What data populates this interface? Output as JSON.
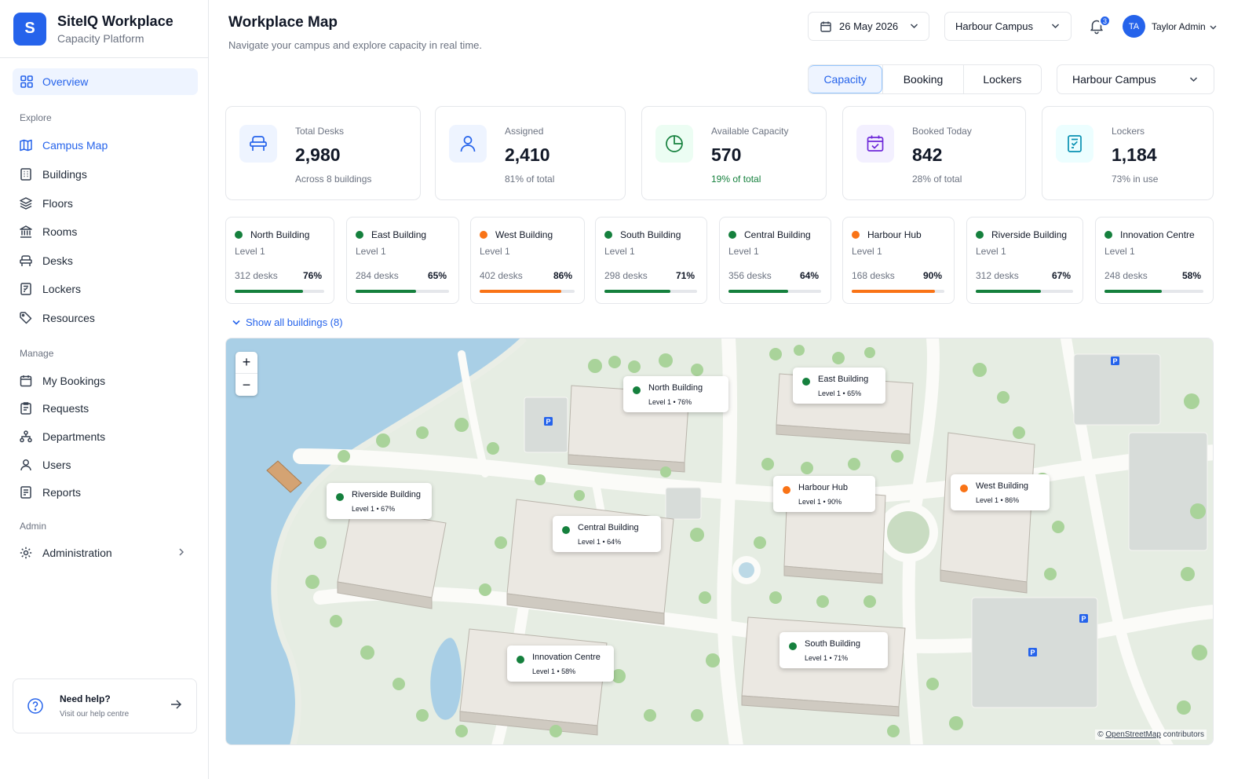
{
  "brand": {
    "logo_letter": "S",
    "name": "SiteIQ Workplace",
    "subtitle": "Capacity Platform"
  },
  "nav": {
    "overview": "Overview",
    "sections": {
      "explore": "Explore",
      "manage": "Manage",
      "admin": "Admin"
    },
    "explore": [
      "Campus Map",
      "Buildings",
      "Floors",
      "Rooms",
      "Desks",
      "Lockers",
      "Resources"
    ],
    "manage": [
      "My Bookings",
      "Requests",
      "Departments",
      "Users",
      "Reports"
    ],
    "admin": [
      "Administration"
    ]
  },
  "help": {
    "title": "Need help?",
    "subtitle": "Visit our help centre"
  },
  "header": {
    "title": "Workplace Map",
    "subtitle": "Navigate your campus and explore capacity in real time.",
    "date": "26 May 2026",
    "campus": "Harbour Campus",
    "notifications": "3",
    "user_initials": "TA",
    "user_name": "Taylor Admin"
  },
  "tabs": [
    "Capacity",
    "Booking",
    "Lockers"
  ],
  "campus_select": "Harbour Campus",
  "stats": [
    {
      "label": "Total Desks",
      "value": "2,980",
      "note": "Across 8 buildings"
    },
    {
      "label": "Assigned",
      "value": "2,410",
      "note": "81% of total"
    },
    {
      "label": "Available Capacity",
      "value": "570",
      "note": "19% of total"
    },
    {
      "label": "Booked Today",
      "value": "842",
      "note": "28% of total"
    },
    {
      "label": "Lockers",
      "value": "1,184",
      "note": "73% in use"
    }
  ],
  "buildings": [
    {
      "name": "North Building",
      "level": "Level 1",
      "desks": "312 desks",
      "pct": "76%",
      "value": 76,
      "color": "#15803d"
    },
    {
      "name": "East Building",
      "level": "Level 1",
      "desks": "284 desks",
      "pct": "65%",
      "value": 65,
      "color": "#15803d"
    },
    {
      "name": "West Building",
      "level": "Level 1",
      "desks": "402 desks",
      "pct": "86%",
      "value": 86,
      "color": "#f97316"
    },
    {
      "name": "South Building",
      "level": "Level 1",
      "desks": "298 desks",
      "pct": "71%",
      "value": 71,
      "color": "#15803d"
    },
    {
      "name": "Central Building",
      "level": "Level 1",
      "desks": "356 desks",
      "pct": "64%",
      "value": 64,
      "color": "#15803d"
    },
    {
      "name": "Harbour Hub",
      "level": "Level 1",
      "desks": "168 desks",
      "pct": "90%",
      "value": 90,
      "color": "#f97316"
    },
    {
      "name": "Riverside Building",
      "level": "Level 1",
      "desks": "312 desks",
      "pct": "67%",
      "value": 67,
      "color": "#15803d"
    },
    {
      "name": "Innovation Centre",
      "level": "Level 1",
      "desks": "248 desks",
      "pct": "58%",
      "value": 58,
      "color": "#15803d"
    }
  ],
  "show_all": "Show all buildings (8)",
  "map": {
    "zoom_in": "+",
    "zoom_out": "−",
    "markers": [
      {
        "name": "North Building",
        "sub": "Level 1  •  76%",
        "color": "#15803d"
      },
      {
        "name": "East Building",
        "sub": "Level 1  •  65%",
        "color": "#15803d"
      },
      {
        "name": "Riverside Building",
        "sub": "Level 1  •  67%",
        "color": "#15803d"
      },
      {
        "name": "Harbour Hub",
        "sub": "Level 1  •  90%",
        "color": "#f97316"
      },
      {
        "name": "West Building",
        "sub": "Level 1  •  86%",
        "color": "#f97316"
      },
      {
        "name": "Central Building",
        "sub": "Level 1  •  64%",
        "color": "#15803d"
      },
      {
        "name": "Innovation Centre",
        "sub": "Level 1  •  58%",
        "color": "#15803d"
      },
      {
        "name": "South Building",
        "sub": "Level 1  •  71%",
        "color": "#15803d"
      }
    ],
    "parking_label": "P",
    "attribution_prefix": "© ",
    "attribution_link": "OpenStreetMap",
    "attribution_suffix": " contributors"
  }
}
